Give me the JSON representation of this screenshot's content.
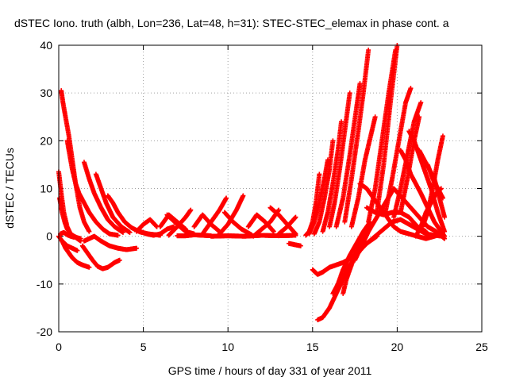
{
  "chart_data": {
    "type": "scatter",
    "title": "dSTEC Iono. truth (albh, Lon=236, Lat=48, h=31): STEC-STEC_elemax in phase cont. a",
    "xlabel": "GPS time / hours of day 331 of year 2011",
    "ylabel": "dSTEC  / TECUs",
    "xlim": [
      0,
      25
    ],
    "ylim": [
      -20,
      40
    ],
    "xticks": [
      0,
      5,
      10,
      15,
      20,
      25
    ],
    "yticks": [
      -20,
      -10,
      0,
      10,
      20,
      30,
      40
    ],
    "grid": true,
    "marker": "+",
    "series_color": "#ff0000",
    "series": [
      {
        "x": [
          0.0,
          0.15,
          0.3,
          0.5,
          0.7,
          0.9,
          1.1,
          1.3
        ],
        "y": [
          13.5,
          9,
          5,
          2,
          0.5,
          0,
          -0.3,
          -0.5
        ]
      },
      {
        "x": [
          0.05,
          0.2,
          0.35,
          0.5,
          0.7,
          0.9,
          1.1,
          1.3
        ],
        "y": [
          8,
          5,
          3,
          1.5,
          0.5,
          0,
          -0.5,
          -1
        ]
      },
      {
        "x": [
          0.15,
          0.25,
          0.4,
          0.6,
          0.8,
          1.0,
          1.25,
          1.5,
          1.8
        ],
        "y": [
          30.5,
          28,
          25,
          21,
          16,
          11,
          6,
          3,
          1
        ]
      },
      {
        "x": [
          0.5,
          0.65,
          0.8,
          1.0,
          1.2,
          1.5,
          1.8,
          2.2,
          2.6,
          3.0,
          3.5
        ],
        "y": [
          20,
          17,
          14,
          11,
          9,
          7,
          5,
          3,
          1.5,
          0.5,
          0.2
        ]
      },
      {
        "x": [
          1.5,
          1.8,
          2.1,
          2.5,
          2.9,
          3.3,
          3.8
        ],
        "y": [
          15.5,
          12,
          9,
          6,
          3.5,
          2,
          0.8
        ]
      },
      {
        "x": [
          2.2,
          2.5,
          2.8,
          3.2,
          3.7,
          4.2
        ],
        "y": [
          13,
          10,
          7,
          4,
          2,
          0.8
        ]
      },
      {
        "x": [
          2.9,
          3.2,
          3.5,
          3.9,
          4.3,
          4.8,
          5.3,
          6.0
        ],
        "y": [
          8.5,
          7,
          5,
          3,
          1.8,
          0.9,
          0.5,
          0.2
        ]
      },
      {
        "x": [
          0.0,
          0.2,
          0.4,
          0.6,
          0.8,
          1.1,
          1.4,
          1.8
        ],
        "y": [
          0,
          -1,
          -2.5,
          -3.5,
          -4.5,
          -5.5,
          -6,
          -6.5
        ]
      },
      {
        "x": [
          0.2,
          0.5,
          0.8,
          1.1
        ],
        "y": [
          -1,
          -2,
          -2.5,
          -3
        ]
      },
      {
        "x": [
          0.1,
          0.3,
          0.5,
          0.7,
          0.9
        ],
        "y": [
          0.5,
          0.8,
          0.3,
          0,
          -0.2
        ]
      },
      {
        "x": [
          1.4,
          1.7,
          2.0,
          2.3,
          2.6,
          2.9,
          3.3,
          3.6
        ],
        "y": [
          -2,
          -3.5,
          -5,
          -6.3,
          -6.8,
          -6.5,
          -5.5,
          -5
        ]
      },
      {
        "x": [
          1.5,
          1.8,
          2.1,
          2.5,
          3.0,
          3.5,
          4.0,
          4.6
        ],
        "y": [
          -1,
          -0.5,
          0,
          -1,
          -2,
          -2.5,
          -2.8,
          -2.5
        ]
      },
      {
        "x": [
          4.6,
          5.0,
          5.4,
          5.8
        ],
        "y": [
          1,
          2.5,
          3.5,
          2
        ]
      },
      {
        "x": [
          4.8,
          5.2,
          5.6,
          6.0,
          6.4,
          6.8
        ],
        "y": [
          1,
          0.5,
          0.2,
          0.5,
          1.5,
          2
        ]
      },
      {
        "x": [
          6.0,
          6.5,
          7.0,
          7.5
        ],
        "y": [
          2,
          4.5,
          3,
          1.5
        ]
      },
      {
        "x": [
          6.4,
          7.0,
          7.5,
          8.0
        ],
        "y": [
          4.5,
          2.5,
          1,
          0.5
        ]
      },
      {
        "x": [
          6.5,
          7.0,
          7.5,
          7.8
        ],
        "y": [
          0.2,
          2,
          4,
          5.5
        ]
      },
      {
        "x": [
          7.0,
          7.5,
          8.0,
          8.5,
          9.0
        ],
        "y": [
          0.1,
          0.1,
          0.3,
          0.2,
          0.1
        ]
      },
      {
        "x": [
          8.0,
          8.5,
          9.0,
          9.5
        ],
        "y": [
          2,
          4.5,
          2.5,
          1
        ]
      },
      {
        "x": [
          8.5,
          9.0,
          9.5,
          9.9
        ],
        "y": [
          0.5,
          3,
          5.5,
          8
        ]
      },
      {
        "x": [
          9.5,
          10.0,
          10.5,
          10.9
        ],
        "y": [
          0.5,
          2.5,
          5.5,
          8.5
        ]
      },
      {
        "x": [
          9.8,
          10.3,
          10.8,
          11.4
        ],
        "y": [
          5,
          3,
          1.5,
          0.3
        ]
      },
      {
        "x": [
          11.2,
          11.7,
          12.2,
          12.7
        ],
        "y": [
          2,
          4.5,
          3,
          1
        ]
      },
      {
        "x": [
          11.5,
          12.0,
          12.5,
          13.0
        ],
        "y": [
          0,
          1.5,
          3,
          5.5
        ]
      },
      {
        "x": [
          12.5,
          13.0,
          13.5,
          14.0
        ],
        "y": [
          6,
          4.5,
          2.5,
          0.5
        ]
      },
      {
        "x": [
          13.0,
          13.5,
          14.0
        ],
        "y": [
          0.5,
          2,
          4
        ]
      },
      {
        "x": [
          9.0,
          10.0,
          11.0,
          12.0,
          13.0,
          14.0
        ],
        "y": [
          0,
          0.1,
          0,
          0.2,
          0.1,
          0.2
        ]
      },
      {
        "x": [
          13.6,
          14.0,
          14.3
        ],
        "y": [
          -1.5,
          -1.8,
          -2
        ]
      },
      {
        "x": [
          14.6,
          14.8,
          15.0,
          15.2,
          15.4
        ],
        "y": [
          0.2,
          1,
          3,
          7,
          13
        ]
      },
      {
        "x": [
          14.8,
          15.1,
          15.4,
          15.7,
          15.9
        ],
        "y": [
          0.5,
          3,
          7,
          12,
          16
        ]
      },
      {
        "x": [
          15.1,
          15.4,
          15.7,
          16.0,
          16.2
        ],
        "y": [
          0.5,
          3,
          8,
          14,
          20
        ]
      },
      {
        "x": [
          15.6,
          15.9,
          16.2,
          16.5,
          16.7
        ],
        "y": [
          1,
          5,
          11,
          18,
          24
        ]
      },
      {
        "x": [
          16.0,
          16.3,
          16.6,
          16.9,
          17.2
        ],
        "y": [
          2,
          7,
          14,
          22,
          30
        ]
      },
      {
        "x": [
          16.4,
          16.8,
          17.2,
          17.6,
          17.8
        ],
        "y": [
          2,
          8,
          17,
          27,
          32
        ]
      },
      {
        "x": [
          16.9,
          17.3,
          17.7,
          18.0,
          18.3
        ],
        "y": [
          3,
          12,
          22,
          30,
          39
        ]
      },
      {
        "x": [
          17.3,
          17.7,
          18.1,
          18.5,
          18.7
        ],
        "y": [
          2,
          8,
          16,
          22,
          25
        ]
      },
      {
        "x": [
          18.3,
          18.7,
          19.1,
          19.5,
          19.9
        ],
        "y": [
          3,
          10,
          20,
          30,
          39
        ]
      },
      {
        "x": [
          18.8,
          19.2,
          19.6,
          20.0
        ],
        "y": [
          5,
          15,
          28,
          40
        ]
      },
      {
        "x": [
          19.3,
          19.7,
          20.1,
          20.5,
          20.8
        ],
        "y": [
          5,
          12,
          20,
          28,
          31
        ]
      },
      {
        "x": [
          19.8,
          20.2,
          20.6,
          21.0,
          21.4
        ],
        "y": [
          4,
          10,
          17,
          24,
          28
        ]
      },
      {
        "x": [
          20.2,
          20.6,
          21.0,
          21.3
        ],
        "y": [
          5,
          12,
          20,
          25
        ]
      },
      {
        "x": [
          15.0,
          15.3,
          15.6,
          16.0,
          16.4,
          16.8,
          17.3,
          17.8,
          18.2,
          18.7,
          19.2,
          19.7,
          20.2,
          20.7,
          21.2,
          21.7,
          22.2,
          22.7
        ],
        "y": [
          -7,
          -8,
          -7.5,
          -6.5,
          -6,
          -5.5,
          -4.5,
          -3,
          -1.5,
          0,
          1.5,
          3,
          3.5,
          2.5,
          1.5,
          0.5,
          0.2,
          0
        ]
      },
      {
        "x": [
          15.3,
          15.6,
          16.0,
          16.4,
          16.8,
          17.2,
          17.6,
          18.0,
          18.4,
          18.8
        ],
        "y": [
          -17.5,
          -17,
          -15,
          -12,
          -9,
          -6,
          -4,
          -2,
          -1,
          0
        ]
      },
      {
        "x": [
          16.2,
          16.5,
          16.8,
          17.2,
          17.6,
          18.0,
          18.4
        ],
        "y": [
          -12,
          -10,
          -7,
          -4,
          -1.5,
          1,
          3
        ]
      },
      {
        "x": [
          16.8,
          17.0,
          17.3,
          17.7,
          18.2
        ],
        "y": [
          -12,
          -9,
          -6,
          -2,
          2
        ]
      },
      {
        "x": [
          17.5,
          17.9,
          18.3,
          18.8,
          19.3,
          19.8
        ],
        "y": [
          -5,
          -2,
          1,
          4,
          7,
          10
        ]
      },
      {
        "x": [
          17.8,
          18.2,
          18.6,
          19.0,
          19.4,
          19.8,
          20.2,
          20.7,
          21.2,
          21.7,
          22.2,
          22.6
        ],
        "y": [
          11,
          10,
          8,
          6,
          4,
          2,
          1,
          0.5,
          0,
          -0.5,
          0,
          0.5
        ]
      },
      {
        "x": [
          18.2,
          18.7,
          19.2,
          19.7,
          20.2,
          20.7,
          21.2,
          21.7
        ],
        "y": [
          6,
          5,
          4.5,
          5,
          5,
          4,
          2,
          1
        ]
      },
      {
        "x": [
          19.8,
          20.3,
          20.8,
          21.3,
          21.8,
          22.3,
          22.8
        ],
        "y": [
          10,
          8,
          6,
          4,
          2,
          1,
          -0.5
        ]
      },
      {
        "x": [
          20.2,
          20.5,
          20.8,
          21.1,
          21.4,
          21.8,
          22.2,
          22.6,
          22.8
        ],
        "y": [
          18,
          16,
          13,
          11,
          9,
          6,
          3,
          1,
          0
        ]
      },
      {
        "x": [
          20.7,
          21.0,
          21.3,
          21.6,
          22.0,
          22.4,
          22.8
        ],
        "y": [
          22,
          20,
          17,
          14,
          10,
          5,
          1
        ]
      },
      {
        "x": [
          21.3,
          21.6,
          21.9,
          22.2,
          22.5,
          22.8
        ],
        "y": [
          18,
          16,
          14,
          12,
          8,
          4
        ]
      },
      {
        "x": [
          21.8,
          22.1,
          22.4,
          22.7
        ],
        "y": [
          15,
          12,
          10,
          8
        ]
      },
      {
        "x": [
          21.5,
          21.8,
          22.1,
          22.4,
          22.7
        ],
        "y": [
          2,
          5,
          10,
          16,
          21
        ]
      },
      {
        "x": [
          21.1,
          21.4,
          21.7,
          22.0,
          22.3,
          22.6
        ],
        "y": [
          0,
          2,
          5,
          7,
          9,
          10
        ]
      }
    ]
  }
}
